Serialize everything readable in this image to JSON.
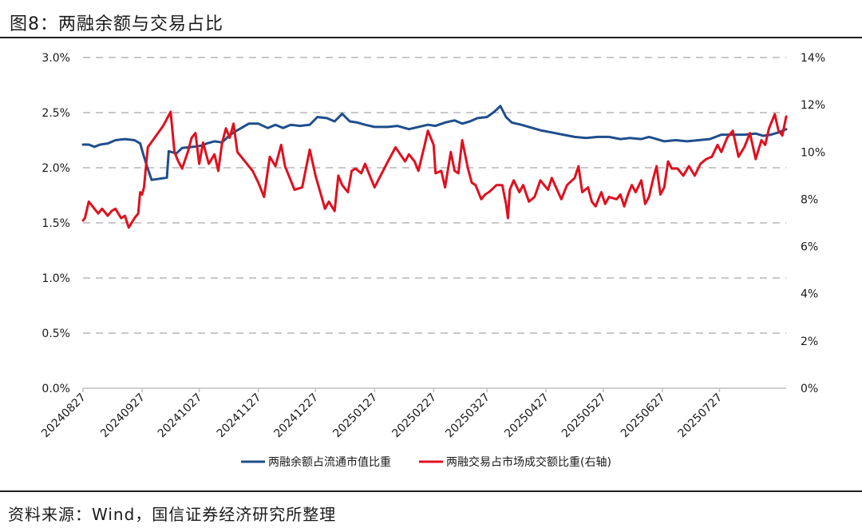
{
  "figure": {
    "title": "图8：两融余额与交易占比",
    "source": "资料来源：Wind，国信证券经济研究所整理"
  },
  "colors": {
    "left_series": "#1f4e8c",
    "right_series": "#e0101e",
    "grid": "#c8c8c8"
  },
  "chart_data": {
    "type": "line",
    "x_tick_labels": [
      "20240827",
      "20240927",
      "20241027",
      "20241127",
      "20241227",
      "20250127",
      "20250227",
      "20250327",
      "20250427",
      "20250527",
      "20250627",
      "20250727"
    ],
    "x_range": [
      "2024-08-27",
      "2025-08-31"
    ],
    "y_left": {
      "ticks": [
        "0.0%",
        "0.5%",
        "1.0%",
        "1.5%",
        "2.0%",
        "2.5%",
        "3.0%"
      ],
      "range": [
        0,
        3.0
      ]
    },
    "y_right": {
      "ticks": [
        "0%",
        "2%",
        "4%",
        "6%",
        "8%",
        "10%",
        "12%",
        "14%"
      ],
      "range": [
        0,
        14
      ]
    },
    "grid": "horizontal-dashed",
    "legend_position": "bottom",
    "series": [
      {
        "name": "两融余额占流通市值比重",
        "axis": "left",
        "color": "#1f4e8c",
        "points": [
          [
            "2024-08-27",
            2.21
          ],
          [
            "2024-08-30",
            2.21
          ],
          [
            "2024-09-02",
            2.19
          ],
          [
            "2024-09-05",
            2.21
          ],
          [
            "2024-09-09",
            2.22
          ],
          [
            "2024-09-13",
            2.25
          ],
          [
            "2024-09-18",
            2.26
          ],
          [
            "2024-09-23",
            2.25
          ],
          [
            "2024-09-26",
            2.22
          ],
          [
            "2024-09-28",
            2.1
          ],
          [
            "2024-09-30",
            1.99
          ],
          [
            "2024-10-02",
            1.89
          ],
          [
            "2024-10-06",
            1.9
          ],
          [
            "2024-10-10",
            1.91
          ],
          [
            "2024-10-11",
            2.15
          ],
          [
            "2024-10-15",
            2.13
          ],
          [
            "2024-10-18",
            2.18
          ],
          [
            "2024-10-24",
            2.19
          ],
          [
            "2024-10-28",
            2.2
          ],
          [
            "2024-10-31",
            2.22
          ],
          [
            "2024-11-04",
            2.24
          ],
          [
            "2024-11-08",
            2.23
          ],
          [
            "2024-11-11",
            2.28
          ],
          [
            "2024-11-14",
            2.32
          ],
          [
            "2024-11-18",
            2.36
          ],
          [
            "2024-11-22",
            2.4
          ],
          [
            "2024-11-27",
            2.4
          ],
          [
            "2024-12-02",
            2.36
          ],
          [
            "2024-12-06",
            2.39
          ],
          [
            "2024-12-10",
            2.36
          ],
          [
            "2024-12-14",
            2.39
          ],
          [
            "2024-12-19",
            2.38
          ],
          [
            "2024-12-24",
            2.39
          ],
          [
            "2024-12-28",
            2.46
          ],
          [
            "2025-01-02",
            2.45
          ],
          [
            "2025-01-06",
            2.42
          ],
          [
            "2025-01-10",
            2.49
          ],
          [
            "2025-01-14",
            2.42
          ],
          [
            "2025-01-18",
            2.41
          ],
          [
            "2025-01-22",
            2.39
          ],
          [
            "2025-01-27",
            2.37
          ],
          [
            "2025-02-03",
            2.37
          ],
          [
            "2025-02-08",
            2.38
          ],
          [
            "2025-02-14",
            2.35
          ],
          [
            "2025-02-19",
            2.37
          ],
          [
            "2025-02-24",
            2.39
          ],
          [
            "2025-02-28",
            2.38
          ],
          [
            "2025-03-05",
            2.41
          ],
          [
            "2025-03-10",
            2.43
          ],
          [
            "2025-03-14",
            2.4
          ],
          [
            "2025-03-18",
            2.42
          ],
          [
            "2025-03-22",
            2.45
          ],
          [
            "2025-03-27",
            2.46
          ],
          [
            "2025-03-31",
            2.51
          ],
          [
            "2025-04-03",
            2.56
          ],
          [
            "2025-04-06",
            2.46
          ],
          [
            "2025-04-09",
            2.41
          ],
          [
            "2025-04-14",
            2.39
          ],
          [
            "2025-04-18",
            2.37
          ],
          [
            "2025-04-24",
            2.34
          ],
          [
            "2025-04-30",
            2.32
          ],
          [
            "2025-05-06",
            2.3
          ],
          [
            "2025-05-12",
            2.28
          ],
          [
            "2025-05-18",
            2.27
          ],
          [
            "2025-05-24",
            2.28
          ],
          [
            "2025-05-30",
            2.28
          ],
          [
            "2025-06-05",
            2.26
          ],
          [
            "2025-06-10",
            2.27
          ],
          [
            "2025-06-16",
            2.26
          ],
          [
            "2025-06-20",
            2.28
          ],
          [
            "2025-06-24",
            2.26
          ],
          [
            "2025-06-28",
            2.24
          ],
          [
            "2025-07-04",
            2.25
          ],
          [
            "2025-07-10",
            2.24
          ],
          [
            "2025-07-16",
            2.25
          ],
          [
            "2025-07-22",
            2.26
          ],
          [
            "2025-07-28",
            2.3
          ],
          [
            "2025-08-03",
            2.3
          ],
          [
            "2025-08-09",
            2.3
          ],
          [
            "2025-08-15",
            2.31
          ],
          [
            "2025-08-19",
            2.29
          ],
          [
            "2025-08-23",
            2.3
          ],
          [
            "2025-08-27",
            2.32
          ],
          [
            "2025-08-31",
            2.35
          ]
        ]
      },
      {
        "name": "两融交易占市场成交额比重(右轴)",
        "axis": "right",
        "color": "#e0101e",
        "points": [
          [
            "2024-08-27",
            7.1
          ],
          [
            "2024-08-28",
            7.2
          ],
          [
            "2024-08-30",
            7.9
          ],
          [
            "2024-09-02",
            7.6
          ],
          [
            "2024-09-04",
            7.4
          ],
          [
            "2024-09-06",
            7.6
          ],
          [
            "2024-09-09",
            7.3
          ],
          [
            "2024-09-11",
            7.5
          ],
          [
            "2024-09-13",
            7.6
          ],
          [
            "2024-09-16",
            7.2
          ],
          [
            "2024-09-18",
            7.3
          ],
          [
            "2024-09-20",
            6.8
          ],
          [
            "2024-09-23",
            7.2
          ],
          [
            "2024-09-25",
            7.4
          ],
          [
            "2024-09-26",
            8.3
          ],
          [
            "2024-09-27",
            8.2
          ],
          [
            "2024-09-28",
            8.5
          ],
          [
            "2024-09-30",
            10.2
          ],
          [
            "2024-10-08",
            11.1
          ],
          [
            "2024-10-12",
            11.7
          ],
          [
            "2024-10-14",
            10.0
          ],
          [
            "2024-10-16",
            9.6
          ],
          [
            "2024-10-18",
            9.3
          ],
          [
            "2024-10-21",
            10.0
          ],
          [
            "2024-10-23",
            10.6
          ],
          [
            "2024-10-25",
            10.8
          ],
          [
            "2024-10-27",
            9.5
          ],
          [
            "2024-10-29",
            10.4
          ],
          [
            "2024-11-01",
            9.5
          ],
          [
            "2024-11-04",
            9.9
          ],
          [
            "2024-11-06",
            9.2
          ],
          [
            "2024-11-08",
            10.4
          ],
          [
            "2024-11-10",
            11.0
          ],
          [
            "2024-11-12",
            10.6
          ],
          [
            "2024-11-14",
            11.2
          ],
          [
            "2024-11-16",
            10.0
          ],
          [
            "2024-11-20",
            9.6
          ],
          [
            "2024-11-24",
            9.2
          ],
          [
            "2024-11-27",
            8.7
          ],
          [
            "2024-11-30",
            8.1
          ],
          [
            "2024-12-03",
            9.8
          ],
          [
            "2024-12-06",
            9.4
          ],
          [
            "2024-12-09",
            10.3
          ],
          [
            "2024-12-11",
            9.4
          ],
          [
            "2024-12-13",
            9.0
          ],
          [
            "2024-12-16",
            8.4
          ],
          [
            "2024-12-20",
            8.5
          ],
          [
            "2024-12-24",
            10.1
          ],
          [
            "2024-12-27",
            9.0
          ],
          [
            "2025-01-01",
            7.6
          ],
          [
            "2025-01-03",
            7.9
          ],
          [
            "2025-01-06",
            7.5
          ],
          [
            "2025-01-08",
            9.0
          ],
          [
            "2025-01-10",
            8.6
          ],
          [
            "2025-01-13",
            8.3
          ],
          [
            "2025-01-15",
            9.2
          ],
          [
            "2025-01-17",
            9.3
          ],
          [
            "2025-01-20",
            9.1
          ],
          [
            "2025-01-22",
            9.5
          ],
          [
            "2025-01-25",
            8.9
          ],
          [
            "2025-01-27",
            8.5
          ],
          [
            "2025-02-03",
            9.6
          ],
          [
            "2025-02-07",
            10.2
          ],
          [
            "2025-02-12",
            9.6
          ],
          [
            "2025-02-14",
            9.9
          ],
          [
            "2025-02-17",
            9.6
          ],
          [
            "2025-02-19",
            9.2
          ],
          [
            "2025-02-22",
            10.2
          ],
          [
            "2025-02-24",
            10.9
          ],
          [
            "2025-02-27",
            10.3
          ],
          [
            "2025-02-28",
            9.1
          ],
          [
            "2025-03-03",
            9.2
          ],
          [
            "2025-03-05",
            8.5
          ],
          [
            "2025-03-08",
            10.0
          ],
          [
            "2025-03-10",
            9.2
          ],
          [
            "2025-03-12",
            9.1
          ],
          [
            "2025-03-14",
            10.5
          ],
          [
            "2025-03-17",
            9.3
          ],
          [
            "2025-03-19",
            8.7
          ],
          [
            "2025-03-21",
            8.6
          ],
          [
            "2025-03-24",
            8.0
          ],
          [
            "2025-03-26",
            8.2
          ],
          [
            "2025-03-28",
            8.3
          ],
          [
            "2025-04-01",
            8.6
          ],
          [
            "2025-04-04",
            8.6
          ],
          [
            "2025-04-06",
            7.8
          ],
          [
            "2025-04-07",
            7.2
          ],
          [
            "2025-04-08",
            8.4
          ],
          [
            "2025-04-10",
            8.8
          ],
          [
            "2025-04-13",
            8.3
          ],
          [
            "2025-04-15",
            8.6
          ],
          [
            "2025-04-18",
            7.9
          ],
          [
            "2025-04-21",
            8.1
          ],
          [
            "2025-04-24",
            8.8
          ],
          [
            "2025-04-28",
            8.4
          ],
          [
            "2025-04-30",
            8.9
          ],
          [
            "2025-05-05",
            8.0
          ],
          [
            "2025-05-08",
            8.6
          ],
          [
            "2025-05-12",
            8.9
          ],
          [
            "2025-05-14",
            9.4
          ],
          [
            "2025-05-16",
            8.3
          ],
          [
            "2025-05-19",
            8.5
          ],
          [
            "2025-05-21",
            7.9
          ],
          [
            "2025-05-23",
            7.7
          ],
          [
            "2025-05-26",
            8.3
          ],
          [
            "2025-05-28",
            7.8
          ],
          [
            "2025-05-30",
            8.1
          ],
          [
            "2025-06-03",
            8.0
          ],
          [
            "2025-06-05",
            8.2
          ],
          [
            "2025-06-07",
            7.7
          ],
          [
            "2025-06-09",
            8.2
          ],
          [
            "2025-06-11",
            8.6
          ],
          [
            "2025-06-13",
            8.3
          ],
          [
            "2025-06-16",
            8.8
          ],
          [
            "2025-06-18",
            7.8
          ],
          [
            "2025-06-20",
            8.1
          ],
          [
            "2025-06-22",
            8.8
          ],
          [
            "2025-06-24",
            9.4
          ],
          [
            "2025-06-26",
            8.2
          ],
          [
            "2025-06-28",
            8.5
          ],
          [
            "2025-06-30",
            9.6
          ],
          [
            "2025-07-02",
            9.3
          ],
          [
            "2025-07-05",
            9.3
          ],
          [
            "2025-07-08",
            9.0
          ],
          [
            "2025-07-11",
            9.4
          ],
          [
            "2025-07-14",
            9.0
          ],
          [
            "2025-07-17",
            9.5
          ],
          [
            "2025-07-20",
            9.7
          ],
          [
            "2025-07-23",
            9.8
          ],
          [
            "2025-07-26",
            10.3
          ],
          [
            "2025-07-28",
            10.0
          ],
          [
            "2025-07-31",
            10.6
          ],
          [
            "2025-08-03",
            10.9
          ],
          [
            "2025-08-06",
            9.8
          ],
          [
            "2025-08-09",
            10.2
          ],
          [
            "2025-08-12",
            10.8
          ],
          [
            "2025-08-15",
            9.7
          ],
          [
            "2025-08-18",
            10.5
          ],
          [
            "2025-08-20",
            10.3
          ],
          [
            "2025-08-22",
            11.0
          ],
          [
            "2025-08-25",
            11.6
          ],
          [
            "2025-08-27",
            10.9
          ],
          [
            "2025-08-29",
            10.7
          ],
          [
            "2025-08-31",
            11.5
          ]
        ]
      }
    ]
  }
}
